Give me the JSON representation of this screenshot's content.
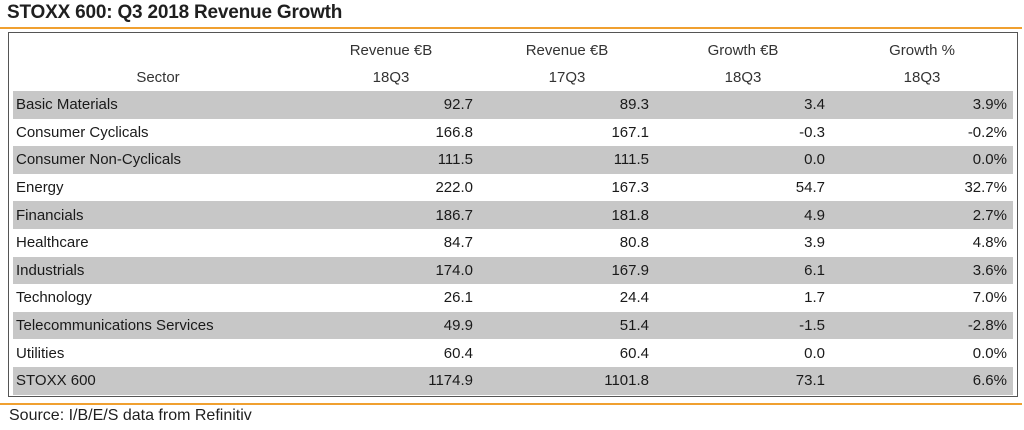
{
  "title": "STOXX 600: Q3 2018 Revenue Growth",
  "source": "Source: I/B/E/S data from Refinitiv",
  "colors": {
    "accent_rule": "#f0a030",
    "shaded_row": "#c7c7c7",
    "border": "#555555"
  },
  "chart_data": {
    "type": "table",
    "title": "STOXX 600: Q3 2018 Revenue Growth",
    "header_row1": [
      "",
      "Revenue €B",
      "Revenue €B",
      "Growth €B",
      "Growth %"
    ],
    "header_row2": [
      "Sector",
      "18Q3",
      "17Q3",
      "18Q3",
      "18Q3"
    ],
    "rows": [
      [
        "Basic Materials",
        "92.7",
        "89.3",
        "3.4",
        "3.9%"
      ],
      [
        "Consumer Cyclicals",
        "166.8",
        "167.1",
        "-0.3",
        "-0.2%"
      ],
      [
        "Consumer Non-Cyclicals",
        "111.5",
        "111.5",
        "0.0",
        "0.0%"
      ],
      [
        "Energy",
        "222.0",
        "167.3",
        "54.7",
        "32.7%"
      ],
      [
        "Financials",
        "186.7",
        "181.8",
        "4.9",
        "2.7%"
      ],
      [
        "Healthcare",
        "84.7",
        "80.8",
        "3.9",
        "4.8%"
      ],
      [
        "Industrials",
        "174.0",
        "167.9",
        "6.1",
        "3.6%"
      ],
      [
        "Technology",
        "26.1",
        "24.4",
        "1.7",
        "7.0%"
      ],
      [
        "Telecommunications Services",
        "49.9",
        "51.4",
        "-1.5",
        "-2.8%"
      ],
      [
        "Utilities",
        "60.4",
        "60.4",
        "0.0",
        "0.0%"
      ],
      [
        "STOXX 600",
        "1174.9",
        "1101.8",
        "73.1",
        "6.6%"
      ]
    ]
  }
}
